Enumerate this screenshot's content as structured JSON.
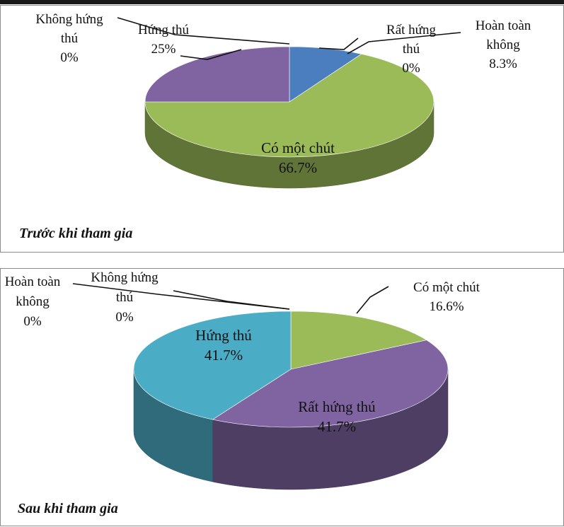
{
  "chart_data": [
    {
      "type": "pie",
      "title": "Trước khi tham gia",
      "slices": [
        {
          "label": "Rất hứng thú",
          "value_text": "0%",
          "value": 0,
          "color": "#4f81bd"
        },
        {
          "label": "Hoàn toàn không",
          "value_text": "8.3%",
          "value": 8.3,
          "color": "#4a7ebf"
        },
        {
          "label": "Có một chút",
          "value_text": "66.7%",
          "value": 66.7,
          "color": "#9bbb59"
        },
        {
          "label": "Hứng thú",
          "value_text": "25%",
          "value": 25,
          "color": "#8064a2"
        },
        {
          "label": "Không hứng thú",
          "value_text": "0%",
          "value": 0,
          "color": "#4bacc6"
        }
      ],
      "label_lines": [
        {
          "parts": [
            "Không hứng",
            "thú",
            "0%"
          ]
        },
        {
          "parts": [
            "Hứng thú",
            "25%"
          ]
        },
        {
          "parts": [
            "Rất hứng",
            "thú",
            "0%"
          ]
        },
        {
          "parts": [
            "Hoàn toàn",
            "không",
            "8.3%"
          ]
        },
        {
          "parts": [
            "Có một chút",
            "66.7%"
          ]
        }
      ]
    },
    {
      "type": "pie",
      "title": "Sau khi tham gia",
      "slices": [
        {
          "label": "Có một chút",
          "value_text": "16.6%",
          "value": 16.6,
          "color": "#9bbb59"
        },
        {
          "label": "Rất hứng thú",
          "value_text": "41.7%",
          "value": 41.7,
          "color": "#8064a2"
        },
        {
          "label": "Hứng thú",
          "value_text": "41.7%",
          "value": 41.7,
          "color": "#4bacc6"
        },
        {
          "label": "Hoàn toàn không",
          "value_text": "0%",
          "value": 0,
          "color": "#4f81bd"
        },
        {
          "label": "Không hứng thú",
          "value_text": "0%",
          "value": 0,
          "color": "#f79646"
        }
      ],
      "label_lines": [
        {
          "parts": [
            "Hoàn toàn",
            "không",
            "0%"
          ]
        },
        {
          "parts": [
            "Không hứng",
            "thú",
            "0%"
          ]
        },
        {
          "parts": [
            "Có một chút",
            "16.6%"
          ]
        },
        {
          "parts": [
            "Hứng thú",
            "41.7%"
          ]
        },
        {
          "parts": [
            "Rất hứng thú",
            "41.7%"
          ]
        }
      ]
    }
  ]
}
